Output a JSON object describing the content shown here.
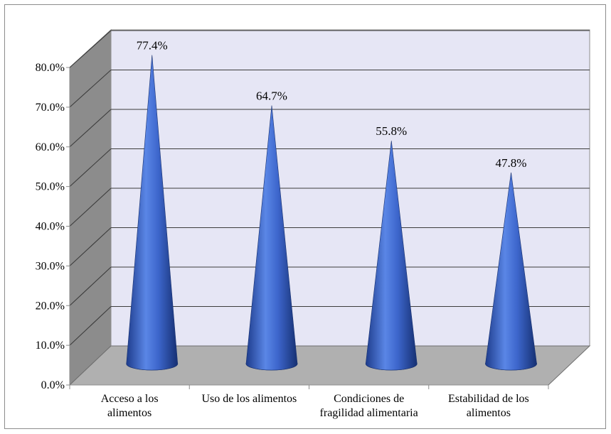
{
  "chart_data": {
    "type": "bar",
    "style": "3d-cone",
    "categories": [
      [
        "Acceso a los",
        "alimentos"
      ],
      [
        "Uso de los alimentos"
      ],
      [
        "Condiciones de",
        "fragilidad alimentaria"
      ],
      [
        "Estabilidad de los",
        "alimentos"
      ]
    ],
    "values": [
      77.4,
      64.7,
      55.8,
      47.8
    ],
    "value_labels": [
      "77.4%",
      "64.7%",
      "55.8%",
      "47.8%"
    ],
    "y_ticks": [
      {
        "value": 0,
        "label": "0.0%"
      },
      {
        "value": 10,
        "label": "10.0%"
      },
      {
        "value": 20,
        "label": "20.0%"
      },
      {
        "value": 30,
        "label": "30.0%"
      },
      {
        "value": 40,
        "label": "40.0%"
      },
      {
        "value": 50,
        "label": "50.0%"
      },
      {
        "value": 60,
        "label": "60.0%"
      },
      {
        "value": 70,
        "label": "70.0%"
      },
      {
        "value": 80,
        "label": "80.0%"
      }
    ],
    "ylim": [
      0,
      80
    ],
    "title": "",
    "xlabel": "",
    "ylabel": "",
    "grid": true,
    "legend": "none",
    "colors": {
      "bar": "#3a63c8",
      "back_wall": "#e6e6f5",
      "side_wall": "#8c8c8c",
      "floor": "#b0b0b0",
      "gridline": "#3c3c3c"
    }
  }
}
